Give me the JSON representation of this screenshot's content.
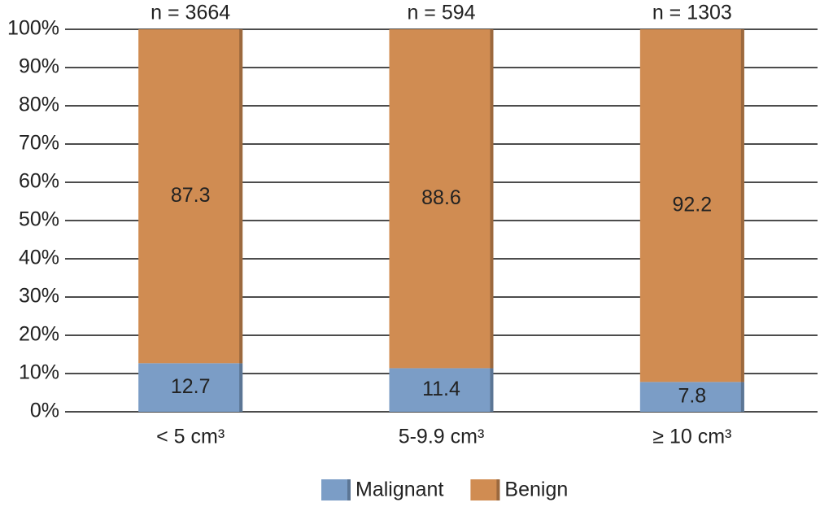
{
  "chart_data": {
    "type": "stacked_bar",
    "categories": [
      "< 5 cm³",
      "5-9.9 cm³",
      "≥ 10 cm³"
    ],
    "annotations": [
      "n = 3664",
      "n = 594",
      "n = 1303"
    ],
    "series": [
      {
        "name": "Malignant",
        "color": "#7b9dc6",
        "values": [
          12.7,
          11.4,
          7.8
        ]
      },
      {
        "name": "Benign",
        "color": "#d08c52",
        "values": [
          87.3,
          88.6,
          92.2
        ]
      }
    ],
    "ylim": [
      0,
      100
    ],
    "yticks": [
      {
        "value": 0,
        "label": "0%"
      },
      {
        "value": 10,
        "label": "10%"
      },
      {
        "value": 20,
        "label": "20%"
      },
      {
        "value": 30,
        "label": "30%"
      },
      {
        "value": 40,
        "label": "40%"
      },
      {
        "value": 50,
        "label": "50%"
      },
      {
        "value": 60,
        "label": "60%"
      },
      {
        "value": 70,
        "label": "70%"
      },
      {
        "value": 80,
        "label": "80%"
      },
      {
        "value": 90,
        "label": "90%"
      },
      {
        "value": 100,
        "label": "100%"
      }
    ],
    "grid": true
  }
}
